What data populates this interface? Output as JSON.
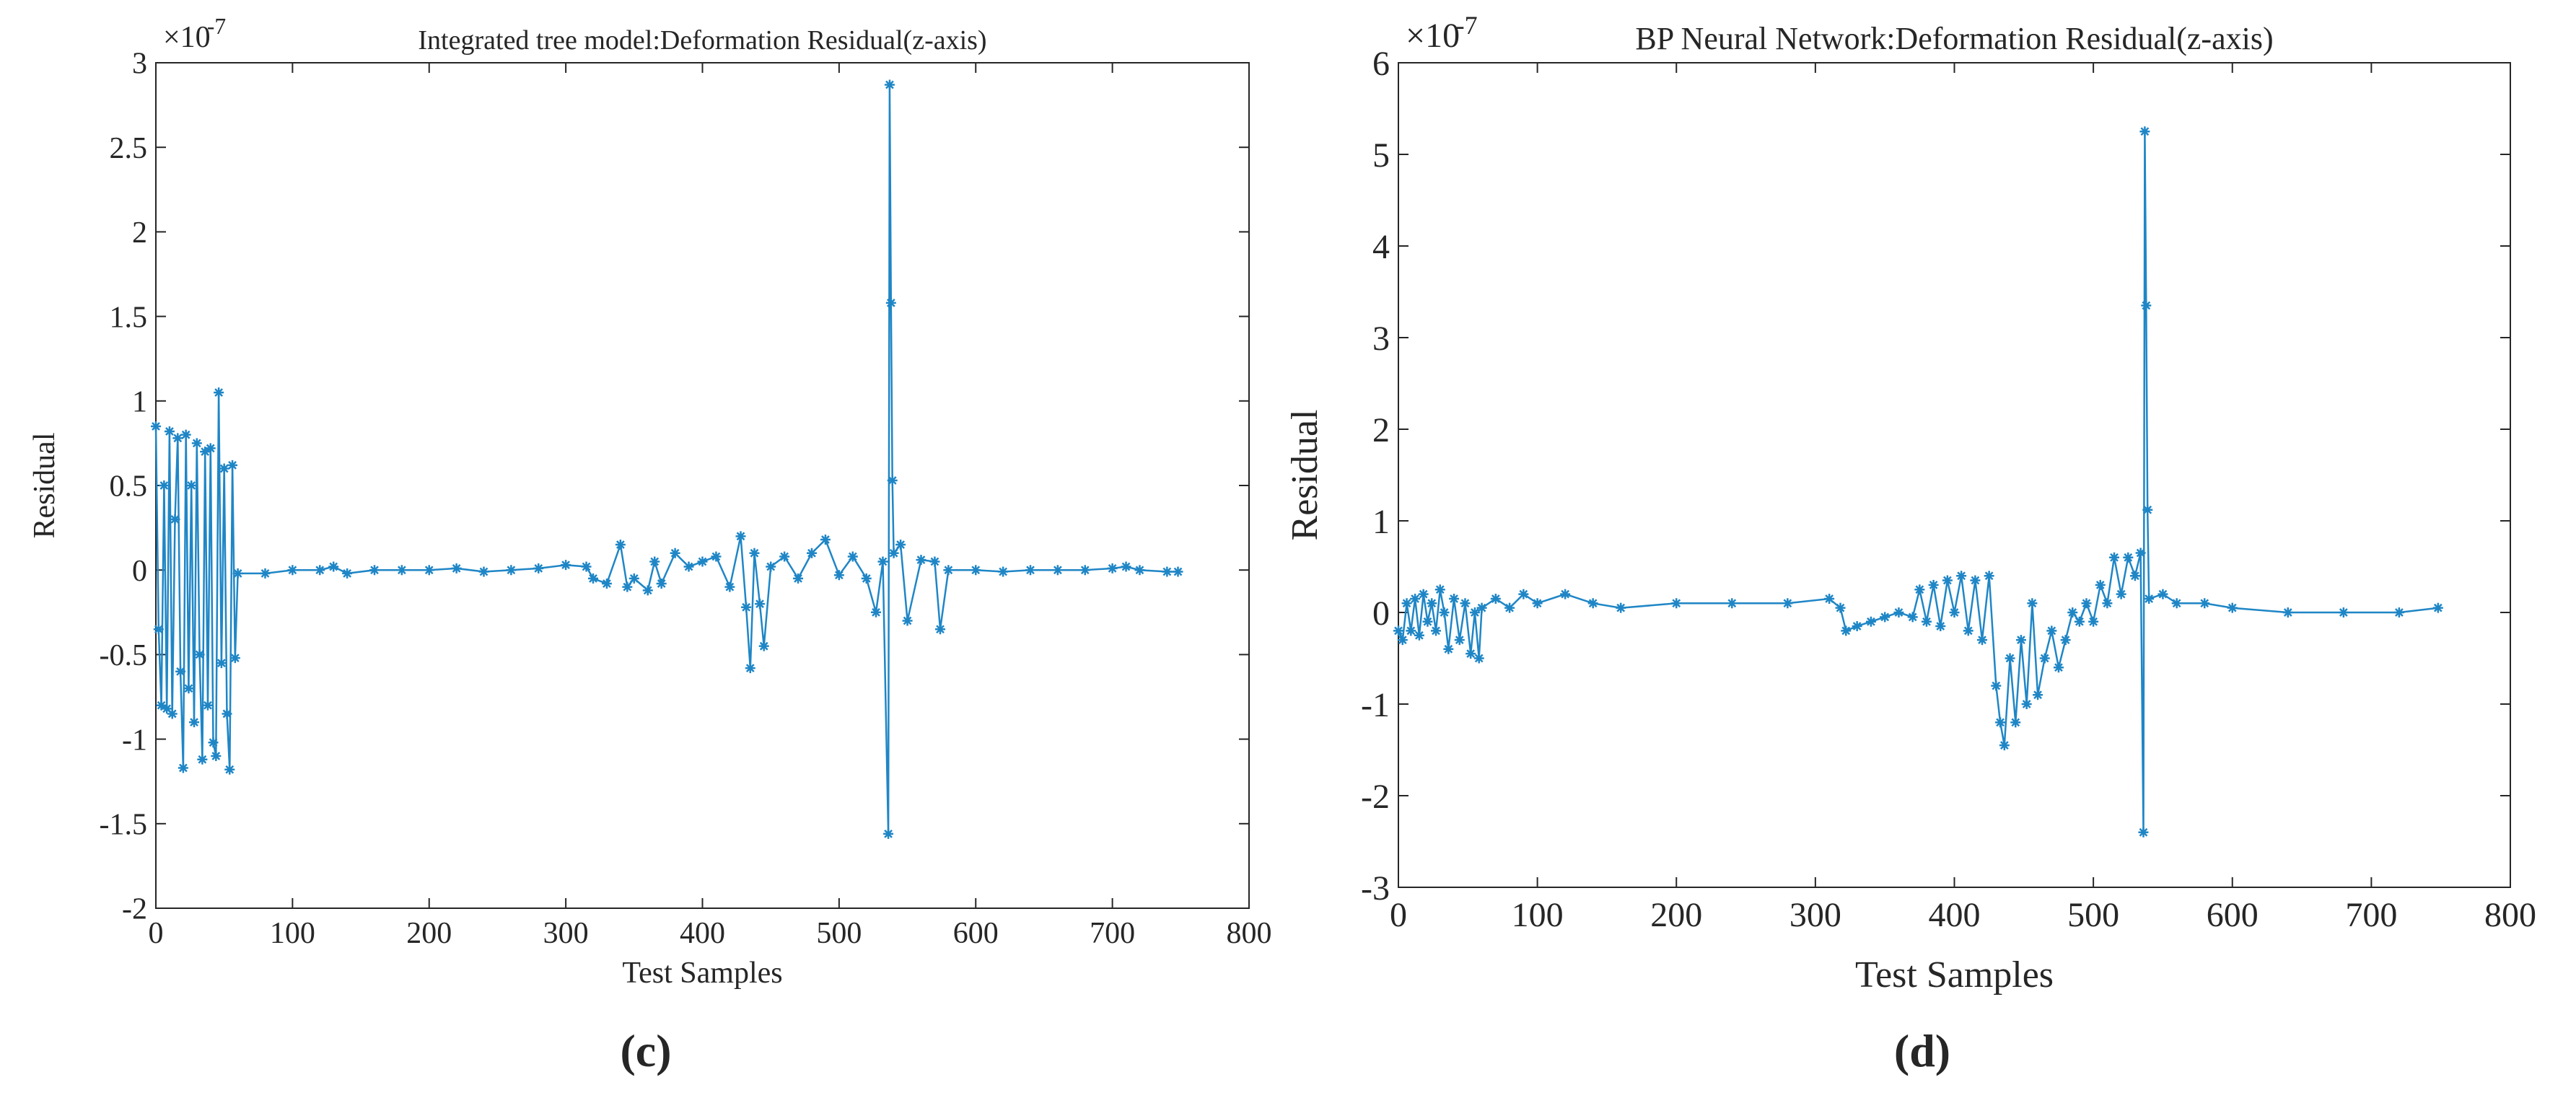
{
  "chart_data": [
    {
      "type": "line",
      "title": "Integrated tree model:Deformation Residual(z-axis)",
      "xlabel": "Test Samples",
      "ylabel": "Residual",
      "y_exponent_base": "×10",
      "y_exponent": "-7",
      "panel_label": "(c)",
      "color": "#1f86c6",
      "xlim": [
        0,
        800
      ],
      "xticks": [
        0,
        100,
        200,
        300,
        400,
        500,
        600,
        700,
        800
      ],
      "ylim": [
        -2,
        3
      ],
      "yticks": [
        -2,
        -1.5,
        -1,
        -0.5,
        0,
        0.5,
        1,
        1.5,
        2,
        2.5,
        3
      ],
      "x": [
        0,
        2,
        4,
        6,
        8,
        10,
        12,
        14,
        16,
        18,
        20,
        22,
        24,
        26,
        28,
        30,
        32,
        34,
        36,
        38,
        40,
        42,
        44,
        46,
        48,
        50,
        52,
        54,
        56,
        58,
        60,
        80,
        100,
        120,
        130,
        140,
        160,
        180,
        200,
        220,
        240,
        260,
        280,
        300,
        315,
        320,
        330,
        340,
        345,
        350,
        360,
        365,
        370,
        380,
        390,
        400,
        410,
        420,
        428,
        432,
        435,
        438,
        442,
        445,
        450,
        460,
        470,
        480,
        490,
        500,
        510,
        520,
        527,
        532,
        536,
        537,
        538,
        539,
        540,
        545,
        550,
        560,
        570,
        574,
        580,
        600,
        620,
        640,
        660,
        680,
        700,
        710,
        720,
        740,
        748
      ],
      "values": [
        0.85,
        -0.35,
        -0.8,
        0.5,
        -0.82,
        0.82,
        -0.85,
        0.3,
        0.78,
        -0.6,
        -1.17,
        0.8,
        -0.7,
        0.5,
        -0.9,
        0.75,
        -0.5,
        -1.12,
        0.7,
        -0.8,
        0.72,
        -1.02,
        -1.1,
        1.05,
        -0.55,
        0.6,
        -0.85,
        -1.18,
        0.62,
        -0.52,
        -0.02,
        -0.02,
        0,
        0,
        0.02,
        -0.02,
        0,
        0,
        0,
        0.01,
        -0.01,
        0,
        0.01,
        0.03,
        0.02,
        -0.05,
        -0.08,
        0.15,
        -0.1,
        -0.05,
        -0.12,
        0.05,
        -0.08,
        0.1,
        0.02,
        0.05,
        0.08,
        -0.1,
        0.2,
        -0.22,
        -0.58,
        0.1,
        -0.2,
        -0.45,
        0.02,
        0.08,
        -0.05,
        0.1,
        0.18,
        -0.03,
        0.08,
        -0.05,
        -0.25,
        0.05,
        -1.56,
        2.87,
        1.58,
        0.53,
        0.1,
        0.15,
        -0.3,
        0.06,
        0.05,
        -0.35,
        0,
        0,
        -0.01,
        0,
        0,
        0,
        0.01,
        0.02,
        0,
        -0.01,
        -0.01
      ]
    },
    {
      "type": "line",
      "title": "BP Neural Network:Deformation Residual(z-axis)",
      "xlabel": "Test Samples",
      "ylabel": "Residual",
      "y_exponent_base": "×10",
      "y_exponent": "-7",
      "panel_label": "(d)",
      "color": "#1f86c6",
      "xlim": [
        0,
        800
      ],
      "xticks": [
        0,
        100,
        200,
        300,
        400,
        500,
        600,
        700,
        800
      ],
      "ylim": [
        -3,
        6
      ],
      "yticks": [
        -3,
        -2,
        -1,
        0,
        1,
        2,
        3,
        4,
        5,
        6
      ],
      "x": [
        0,
        3,
        6,
        9,
        12,
        15,
        18,
        21,
        24,
        27,
        30,
        33,
        36,
        40,
        44,
        48,
        52,
        55,
        58,
        60,
        70,
        80,
        90,
        100,
        120,
        140,
        160,
        200,
        240,
        280,
        310,
        318,
        322,
        330,
        340,
        350,
        360,
        370,
        375,
        380,
        385,
        390,
        395,
        400,
        405,
        410,
        415,
        420,
        425,
        430,
        433,
        436,
        440,
        444,
        448,
        452,
        456,
        460,
        465,
        470,
        475,
        480,
        485,
        490,
        495,
        500,
        505,
        510,
        515,
        520,
        525,
        530,
        534,
        536,
        537,
        538,
        539,
        540,
        550,
        560,
        580,
        600,
        640,
        680,
        720,
        748
      ],
      "values": [
        -0.2,
        -0.3,
        0.1,
        -0.2,
        0.15,
        -0.25,
        0.2,
        -0.1,
        0.1,
        -0.2,
        0.25,
        0,
        -0.4,
        0.15,
        -0.3,
        0.1,
        -0.45,
        0,
        -0.5,
        0.05,
        0.15,
        0.05,
        0.2,
        0.1,
        0.2,
        0.1,
        0.05,
        0.1,
        0.1,
        0.1,
        0.15,
        0.05,
        -0.2,
        -0.15,
        -0.1,
        -0.05,
        0,
        -0.05,
        0.25,
        -0.1,
        0.3,
        -0.15,
        0.35,
        0,
        0.4,
        -0.2,
        0.35,
        -0.3,
        0.4,
        -0.8,
        -1.2,
        -1.45,
        -0.5,
        -1.2,
        -0.3,
        -1.0,
        0.1,
        -0.9,
        -0.5,
        -0.2,
        -0.6,
        -0.3,
        0,
        -0.1,
        0.1,
        -0.1,
        0.3,
        0.1,
        0.6,
        0.2,
        0.6,
        0.4,
        0.65,
        -2.4,
        5.25,
        3.35,
        1.12,
        0.15,
        0.2,
        0.1,
        0.1,
        0.05,
        0,
        0,
        0,
        0.05
      ]
    }
  ]
}
